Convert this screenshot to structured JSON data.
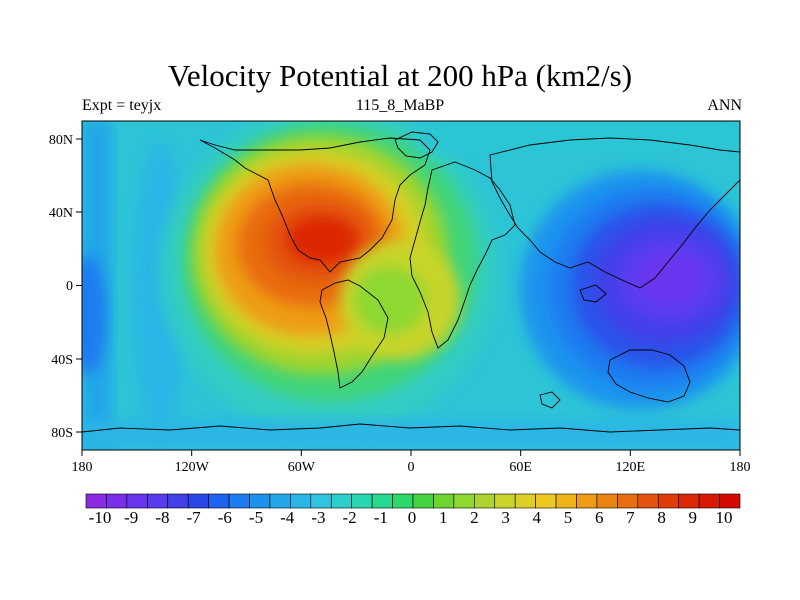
{
  "header": {
    "title": "Velocity Potential at 200 hPa (km2/s)",
    "left": "Expt = teyjx",
    "center": "115_8_MaBP",
    "right": "ANN"
  },
  "map": {
    "projection": "cylindrical equidistant",
    "lon_range": [
      -180,
      180
    ],
    "lat_range": [
      -90,
      90
    ],
    "x_ticks": [
      "180",
      "120W",
      "60W",
      "0",
      "60E",
      "120E",
      "180"
    ],
    "y_ticks": [
      "80N",
      "40N",
      "0",
      "40S",
      "80S"
    ],
    "features": [
      {
        "name": "positive maximum",
        "lon": -55,
        "lat": 25,
        "value": 9.5
      },
      {
        "name": "negative minimum",
        "lon": 135,
        "lat": 5,
        "value": -9.5
      }
    ]
  },
  "colorbar": {
    "labels": [
      "-10",
      "-9",
      "-8",
      "-7",
      "-6",
      "-5",
      "-4",
      "-3",
      "-2",
      "-1",
      "0",
      "1",
      "2",
      "3",
      "4",
      "5",
      "6",
      "7",
      "8",
      "9",
      "10"
    ],
    "colors": [
      "#8a2be2",
      "#7b2ee8",
      "#6a35ee",
      "#5a3cf0",
      "#4340e8",
      "#2b46e8",
      "#1e62f0",
      "#1c7cf0",
      "#1c92ec",
      "#22a6e8",
      "#2ab6e6",
      "#30c4e0",
      "#2ccfcb",
      "#28d6b0",
      "#26d98f",
      "#2cd86a",
      "#44d442",
      "#6ed430",
      "#8ed830",
      "#add430",
      "#c8d42a",
      "#dcd028",
      "#ecc820",
      "#f0b418",
      "#ee9c14",
      "#ec8412",
      "#e86c10",
      "#e4540c",
      "#e03c08",
      "#dc2806",
      "#d81a04",
      "#d40a02"
    ]
  }
}
